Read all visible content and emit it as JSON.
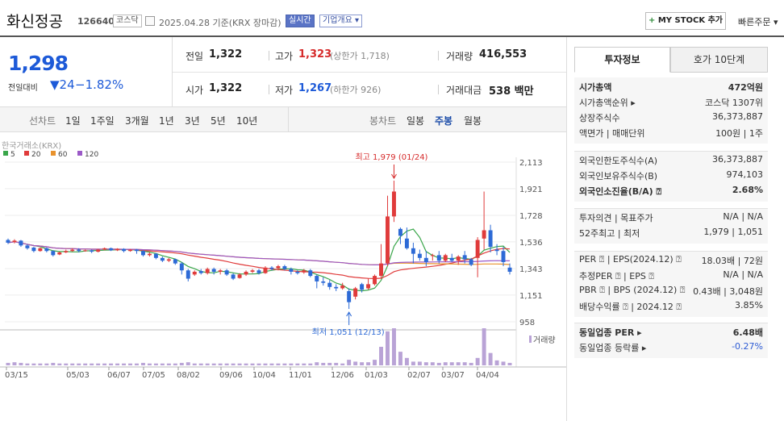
{
  "header": {
    "name": "화신정공",
    "code": "126640",
    "market_badge": "코스닥",
    "date_text": "2025.04.28  기준(KRX 장마감)",
    "realtime_badge": "실시간",
    "company_badge": "기업개요 ▾",
    "mystock_plus": "+",
    "mystock_label": "MY STOCK 추가",
    "quick_order": "빠른주문 ▾"
  },
  "price": {
    "current": "1,298",
    "change_label": "전일대비",
    "change_value": "▼24",
    "change_pct": "−1.82%"
  },
  "quote": {
    "prev_label": "전일",
    "prev_value": "1,322",
    "high_label": "고가",
    "high_value": "1,323",
    "upper_limit": "(상한가 1,718)",
    "volume_label": "거래량",
    "volume_value": "416,553",
    "open_label": "시가",
    "open_value": "1,322",
    "low_label": "저가",
    "low_value": "1,267",
    "lower_limit": "(하한가 926)",
    "amount_label": "거래대금",
    "amount_value": "538 백만"
  },
  "periods": {
    "label": "선차트",
    "items": [
      "1일",
      "1주일",
      "3개월",
      "1년",
      "3년",
      "5년",
      "10년"
    ],
    "candle_label": "봉차트",
    "candle_items": [
      "일봉",
      "주봉",
      "월봉"
    ],
    "candle_active": "주봉"
  },
  "chart_data": {
    "type": "candlestick",
    "source": "한국거래소(KRX)",
    "legend": [
      {
        "name": "5",
        "color": "#3aa64a"
      },
      {
        "name": "20",
        "color": "#e03b3b"
      },
      {
        "name": "60",
        "color": "#e8922d"
      },
      {
        "name": "120",
        "color": "#9b59c7"
      }
    ],
    "y_ticks": [
      "2,113",
      "1,921",
      "1,728",
      "1,536",
      "1,343",
      "1,151",
      "958"
    ],
    "x_ticks": [
      "03/15",
      "05/03",
      "06/07",
      "07/05",
      "08/02",
      "09/06",
      "10/04",
      "11/01",
      "12/06",
      "01/03",
      "02/07",
      "03/07",
      "04/04"
    ],
    "high_annotation": "최고 1,979 (01/24)",
    "low_annotation": "최저 1,051 (12/13)",
    "volume_label": "거래량",
    "ylim": [
      958,
      2113
    ],
    "candles": [
      [
        1550,
        1530,
        1560,
        1520
      ],
      [
        1535,
        1545,
        1555,
        1525
      ],
      [
        1545,
        1510,
        1550,
        1500
      ],
      [
        1510,
        1490,
        1520,
        1480
      ],
      [
        1495,
        1470,
        1500,
        1460
      ],
      [
        1470,
        1490,
        1495,
        1465
      ],
      [
        1490,
        1470,
        1495,
        1460
      ],
      [
        1470,
        1440,
        1475,
        1430
      ],
      [
        1445,
        1460,
        1465,
        1440
      ],
      [
        1460,
        1470,
        1480,
        1455
      ],
      [
        1470,
        1480,
        1490,
        1465
      ],
      [
        1480,
        1470,
        1490,
        1460
      ],
      [
        1470,
        1475,
        1480,
        1465
      ],
      [
        1475,
        1465,
        1480,
        1455
      ],
      [
        1465,
        1480,
        1485,
        1460
      ],
      [
        1480,
        1490,
        1495,
        1475
      ],
      [
        1490,
        1475,
        1495,
        1470
      ],
      [
        1475,
        1485,
        1490,
        1470
      ],
      [
        1485,
        1470,
        1490,
        1460
      ],
      [
        1470,
        1480,
        1485,
        1465
      ],
      [
        1480,
        1470,
        1485,
        1450
      ],
      [
        1470,
        1440,
        1475,
        1430
      ],
      [
        1440,
        1450,
        1460,
        1430
      ],
      [
        1450,
        1420,
        1455,
        1410
      ],
      [
        1420,
        1400,
        1430,
        1390
      ],
      [
        1400,
        1410,
        1420,
        1390
      ],
      [
        1410,
        1380,
        1415,
        1370
      ],
      [
        1380,
        1330,
        1390,
        1300
      ],
      [
        1330,
        1270,
        1340,
        1250
      ],
      [
        1300,
        1320,
        1330,
        1290
      ],
      [
        1325,
        1310,
        1340,
        1300
      ],
      [
        1310,
        1340,
        1350,
        1300
      ],
      [
        1340,
        1320,
        1350,
        1300
      ],
      [
        1320,
        1330,
        1340,
        1300
      ],
      [
        1330,
        1300,
        1340,
        1290
      ],
      [
        1300,
        1270,
        1310,
        1260
      ],
      [
        1275,
        1300,
        1310,
        1270
      ],
      [
        1300,
        1320,
        1330,
        1290
      ],
      [
        1320,
        1330,
        1340,
        1310
      ],
      [
        1330,
        1310,
        1340,
        1300
      ],
      [
        1310,
        1350,
        1360,
        1305
      ],
      [
        1350,
        1340,
        1360,
        1330
      ],
      [
        1345,
        1360,
        1370,
        1330
      ],
      [
        1360,
        1340,
        1370,
        1330
      ],
      [
        1340,
        1320,
        1350,
        1300
      ],
      [
        1320,
        1310,
        1330,
        1300
      ],
      [
        1315,
        1330,
        1340,
        1305
      ],
      [
        1330,
        1290,
        1340,
        1280
      ],
      [
        1290,
        1250,
        1300,
        1200
      ],
      [
        1250,
        1240,
        1280,
        1220
      ],
      [
        1240,
        1210,
        1260,
        1190
      ],
      [
        1210,
        1200,
        1230,
        1180
      ],
      [
        1200,
        1220,
        1240,
        1190
      ],
      [
        1180,
        1100,
        1200,
        1051
      ],
      [
        1140,
        1200,
        1210,
        1120
      ],
      [
        1230,
        1190,
        1240,
        1170
      ],
      [
        1200,
        1230,
        1270,
        1190
      ],
      [
        1230,
        1290,
        1300,
        1220
      ],
      [
        1290,
        1380,
        1520,
        1270
      ],
      [
        1380,
        1720,
        1870,
        1360
      ],
      [
        1720,
        1900,
        1979,
        1680
      ],
      [
        1630,
        1580,
        1640,
        1520
      ],
      [
        1560,
        1490,
        1640,
        1480
      ],
      [
        1490,
        1450,
        1530,
        1380
      ],
      [
        1450,
        1420,
        1480,
        1400
      ],
      [
        1420,
        1390,
        1470,
        1360
      ],
      [
        1440,
        1440,
        1450,
        1400
      ],
      [
        1440,
        1400,
        1470,
        1380
      ],
      [
        1400,
        1440,
        1450,
        1390
      ],
      [
        1420,
        1400,
        1450,
        1390
      ],
      [
        1400,
        1430,
        1440,
        1370
      ],
      [
        1440,
        1410,
        1470,
        1380
      ],
      [
        1410,
        1370,
        1420,
        1360
      ],
      [
        1420,
        1550,
        1570,
        1280
      ],
      [
        1560,
        1620,
        1900,
        1480
      ],
      [
        1620,
        1500,
        1660,
        1460
      ],
      [
        1480,
        1470,
        1520,
        1440
      ],
      [
        1470,
        1390,
        1500,
        1360
      ],
      [
        1350,
        1320,
        1380,
        1300
      ]
    ],
    "volumes": [
      4,
      5,
      4,
      3,
      3,
      3,
      3,
      4,
      3,
      3,
      3,
      3,
      3,
      3,
      3,
      3,
      3,
      3,
      3,
      3,
      3,
      4,
      3,
      3,
      3,
      3,
      3,
      4,
      5,
      3,
      3,
      3,
      3,
      3,
      3,
      3,
      3,
      3,
      3,
      3,
      3,
      3,
      3,
      3,
      3,
      3,
      3,
      3,
      5,
      4,
      4,
      4,
      3,
      9,
      6,
      5,
      5,
      9,
      30,
      55,
      60,
      22,
      12,
      6,
      6,
      5,
      5,
      4,
      5,
      5,
      5,
      5,
      4,
      12,
      60,
      20,
      8,
      6,
      4
    ]
  },
  "right_panel": {
    "tab_active": "투자정보",
    "tab_other": "호가 10단계",
    "rows_group1": [
      {
        "label": "시가총액",
        "value": "472억원",
        "bold": true
      },
      {
        "label": "시가총액순위 ▸",
        "value": "코스닥 1307위"
      },
      {
        "label": "상장주식수",
        "value": "36,373,887"
      },
      {
        "label": "액면가 | 매매단위",
        "value": "100원 | 1주"
      }
    ],
    "rows_group2": [
      {
        "label": "외국인한도주식수(A)",
        "value": "36,373,887"
      },
      {
        "label": "외국인보유주식수(B)",
        "value": "974,103"
      },
      {
        "label": "외국인소진율(B/A) ⍰",
        "value": "2.68%",
        "bold": true
      }
    ],
    "rows_group3": [
      {
        "label": "투자의견 | 목표주가",
        "value": "N/A | N/A"
      },
      {
        "label": "52주최고 | 최저",
        "value": "1,979 | 1,051"
      }
    ],
    "rows_group4": [
      {
        "label": "PER ⍰ | EPS(2024.12) ⍰",
        "value": "18.03배 | 72원"
      },
      {
        "label": "추정PER ⍰ | EPS ⍰",
        "value": "N/A | N/A"
      },
      {
        "label": "PBR ⍰ | BPS (2024.12) ⍰",
        "value": "0.43배 | 3,048원"
      },
      {
        "label": "배당수익률 ⍰ | 2024.12 ⍰",
        "value": "3.85%"
      }
    ],
    "rows_group5": [
      {
        "label": "동일업종 PER ▸",
        "value": "6.48배",
        "bold": true
      },
      {
        "label": "동일업종 등락률 ▸",
        "value": "-0.27%",
        "blue": true
      }
    ]
  }
}
